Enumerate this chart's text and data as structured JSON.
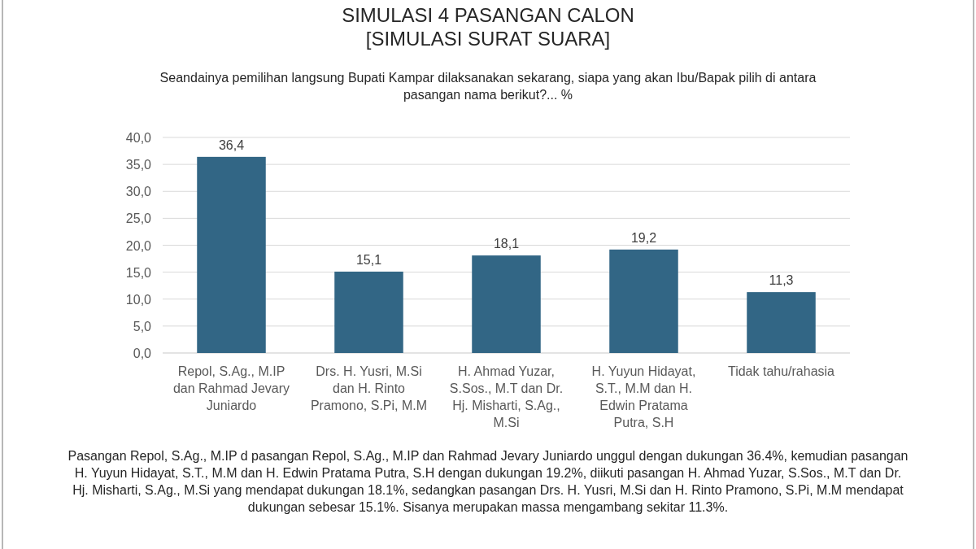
{
  "chart_data": {
    "type": "bar",
    "title": "SIMULASI 4 PASANGAN CALON\n[SIMULASI SURAT SUARA]",
    "subtitle": "Seandainya pemilihan langsung Bupati Kampar dilaksanakan sekarang, siapa yang akan Ibu/Bapak pilih di antara pasangan nama berikut?... %",
    "categories": [
      "Repol, S.Ag., M.IP dan Rahmad Jevary Juniardo",
      "Drs. H. Yusri, M.Si dan H. Rinto Pramono, S.Pi, M.M",
      "H. Ahmad Yuzar, S.Sos., M.T dan Dr. Hj. Misharti, S.Ag., M.Si",
      "H. Yuyun Hidayat, S.T., M.M dan H. Edwin Pratama Putra, S.H",
      "Tidak tahu/rahasia"
    ],
    "values": [
      36.4,
      15.1,
      18.1,
      19.2,
      11.3
    ],
    "value_labels": [
      "36,4",
      "15,1",
      "18,1",
      "19,2",
      "11,3"
    ],
    "color": "#326685",
    "ylim": [
      0,
      40
    ],
    "yticks": [
      {
        "value": 0,
        "label": "0,0"
      },
      {
        "value": 5,
        "label": "5,0"
      },
      {
        "value": 10,
        "label": "10,0"
      },
      {
        "value": 15,
        "label": "15,0"
      },
      {
        "value": 20,
        "label": "20,0"
      },
      {
        "value": 25,
        "label": "25,0"
      },
      {
        "value": 30,
        "label": "30,0"
      },
      {
        "value": 35,
        "label": "35,0"
      },
      {
        "value": 40,
        "label": "40,0"
      }
    ],
    "grid": "y",
    "annotations": [
      "Pasangan Repol, S.Ag., M.IP d pasangan Repol, S.Ag., M.IP dan Rahmad Jevary Juniardo unggul dengan dukungan 36.4%, kemudian pasangan H. Yuyun Hidayat, S.T., M.M dan H. Edwin Pratama Putra, S.H dengan dukungan 19.2%, diikuti pasangan H. Ahmad Yuzar, S.Sos., M.T dan Dr. Hj. Misharti, S.Ag., M.Si yang mendapat dukungan 18.1%, sedangkan pasangan Drs. H. Yusri, M.Si dan H. Rinto Pramono, S.Pi, M.M mendapat dukungan sebesar 15.1%. Sisanya merupakan massa mengambang sekitar 11.3%."
    ]
  }
}
